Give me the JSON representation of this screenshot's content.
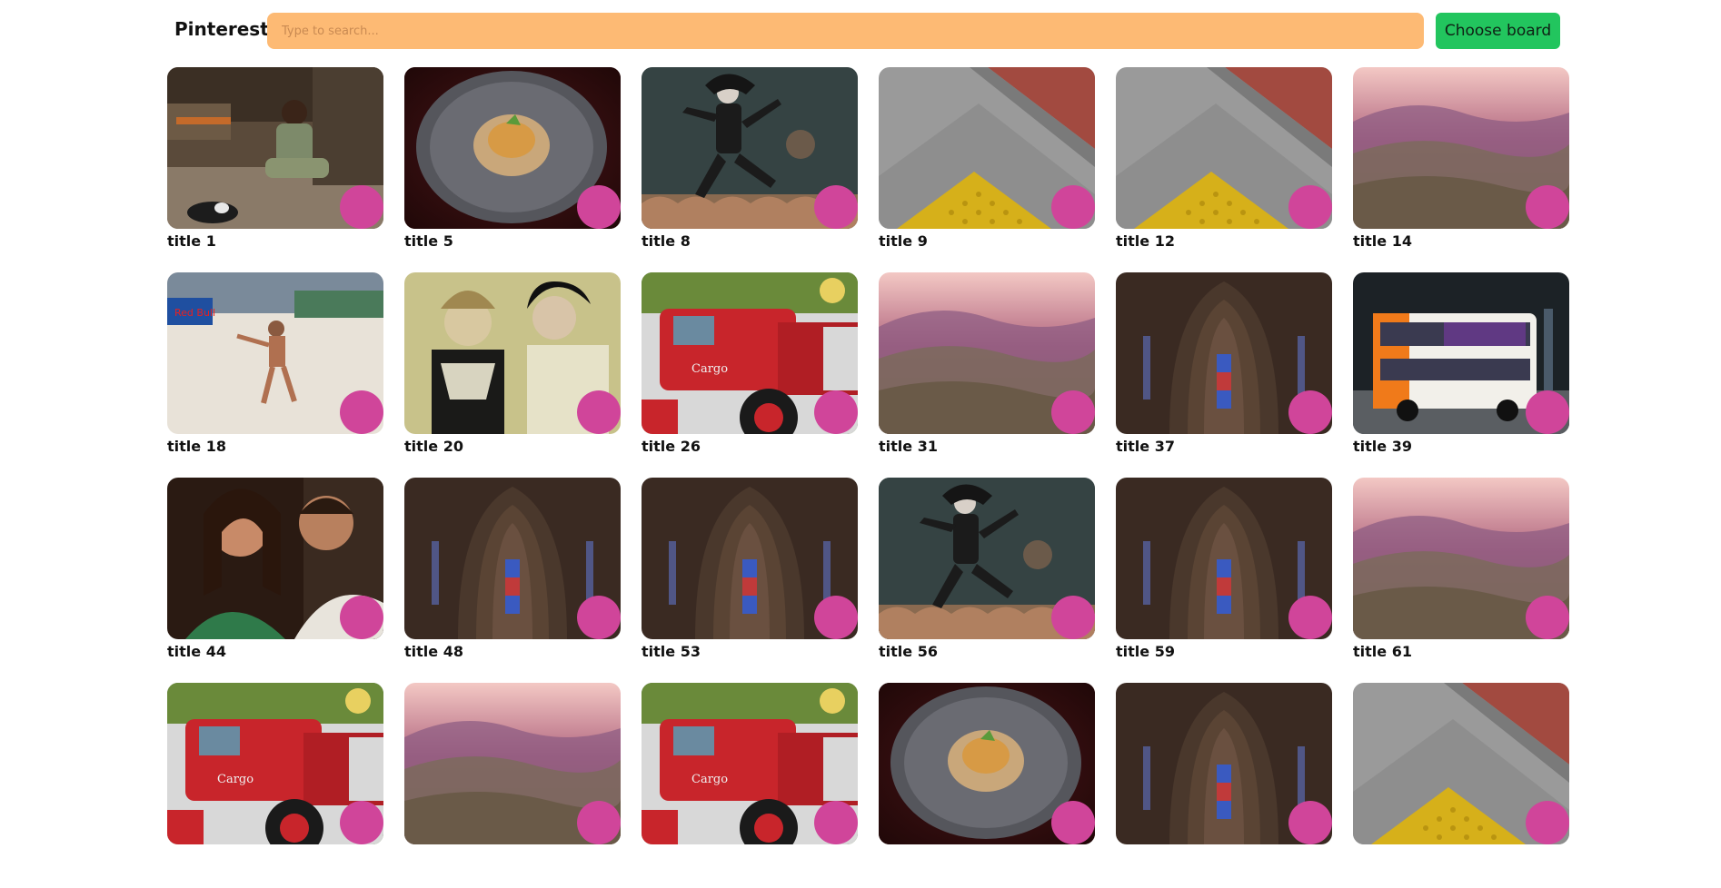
{
  "header": {
    "brand": "Pinterest",
    "search_placeholder": "Type to search...",
    "choose_board_label": "Choose board"
  },
  "colors": {
    "search_background": "#fdba74",
    "choose_button": "#22c55e",
    "pin_dot": "#d0459a"
  },
  "pins": [
    {
      "title": "title 1",
      "image": "village-hearth"
    },
    {
      "title": "title 5",
      "image": "food-plate"
    },
    {
      "title": "title 8",
      "image": "fantasy-warrior"
    },
    {
      "title": "title 9",
      "image": "tactile-paving"
    },
    {
      "title": "title 12",
      "image": "tactile-paving"
    },
    {
      "title": "title 14",
      "image": "mountain-sunset"
    },
    {
      "title": "title 18",
      "image": "beach-volleyball"
    },
    {
      "title": "title 20",
      "image": "vintage-portrait"
    },
    {
      "title": "title 26",
      "image": "red-truck"
    },
    {
      "title": "title 31",
      "image": "mountain-sunset"
    },
    {
      "title": "title 37",
      "image": "cathedral-interior"
    },
    {
      "title": "title 39",
      "image": "double-decker-bus"
    },
    {
      "title": "title 44",
      "image": "couple-photo"
    },
    {
      "title": "title 48",
      "image": "cathedral-interior"
    },
    {
      "title": "title 53",
      "image": "cathedral-interior"
    },
    {
      "title": "title 56",
      "image": "fantasy-warrior"
    },
    {
      "title": "title 59",
      "image": "cathedral-interior"
    },
    {
      "title": "title 61",
      "image": "mountain-sunset"
    },
    {
      "title": "",
      "image": "red-truck"
    },
    {
      "title": "",
      "image": "mountain-sunset"
    },
    {
      "title": "",
      "image": "red-truck"
    },
    {
      "title": "",
      "image": "food-plate"
    },
    {
      "title": "",
      "image": "cathedral-interior"
    },
    {
      "title": "",
      "image": "tactile-paving"
    }
  ]
}
